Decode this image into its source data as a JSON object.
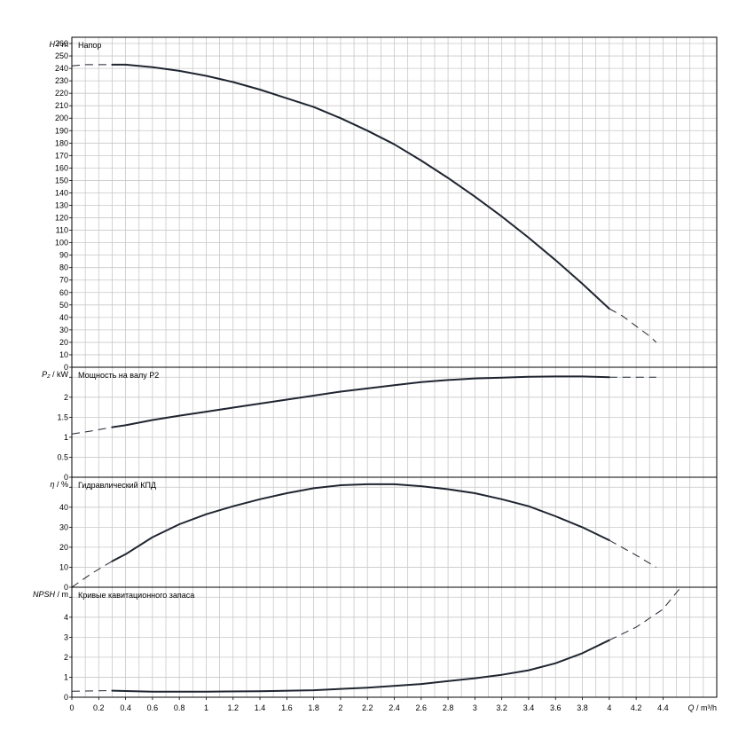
{
  "chart_data": [
    {
      "type": "line",
      "id": "head",
      "title": "Напор",
      "ylabel_symbol": "H",
      "ylabel_unit": "m",
      "ylim": [
        0,
        265
      ],
      "yticks": [
        0,
        10,
        20,
        30,
        40,
        50,
        60,
        70,
        80,
        90,
        100,
        110,
        120,
        130,
        140,
        150,
        160,
        170,
        180,
        190,
        200,
        210,
        220,
        230,
        240,
        250,
        260
      ],
      "series": [
        {
          "x": [
            0,
            0.1,
            0.2,
            0.3,
            0.4,
            0.6,
            0.8,
            1.0,
            1.2,
            1.4,
            1.6,
            1.8,
            2.0,
            2.2,
            2.4,
            2.6,
            2.8,
            3.0,
            3.2,
            3.4,
            3.6,
            3.8,
            4.0,
            4.1,
            4.2,
            4.3,
            4.35
          ],
          "y": [
            242,
            243,
            243,
            243,
            243,
            241,
            238,
            234,
            229,
            223,
            216,
            209,
            200,
            190,
            179,
            166,
            152,
            137,
            121,
            104,
            86,
            67,
            47,
            41,
            33,
            25,
            20
          ],
          "solid_from": 0.3,
          "solid_to": 4.0
        }
      ]
    },
    {
      "type": "line",
      "id": "power",
      "title": "Мощность на валу P2",
      "ylabel_symbol": "P₂",
      "ylabel_unit": "kW",
      "ylim": [
        0,
        2.75
      ],
      "yticks": [
        0,
        0.5,
        1,
        1.5,
        2,
        2.5
      ],
      "ytick_labels": [
        "0",
        "0.5",
        "1",
        "1.5",
        "2",
        ""
      ],
      "series": [
        {
          "x": [
            0,
            0.15,
            0.3,
            0.4,
            0.6,
            0.8,
            1.0,
            1.2,
            1.4,
            1.6,
            1.8,
            2.0,
            2.2,
            2.4,
            2.6,
            2.8,
            3.0,
            3.2,
            3.4,
            3.6,
            3.8,
            4.0,
            4.2,
            4.35
          ],
          "y": [
            1.08,
            1.16,
            1.25,
            1.3,
            1.43,
            1.54,
            1.64,
            1.74,
            1.84,
            1.94,
            2.04,
            2.14,
            2.22,
            2.3,
            2.38,
            2.43,
            2.47,
            2.49,
            2.51,
            2.52,
            2.52,
            2.5,
            2.5,
            2.5
          ],
          "solid_from": 0.3,
          "solid_to": 4.0
        }
      ]
    },
    {
      "type": "line",
      "id": "efficiency",
      "title": "Гидравлический КПД",
      "ylabel_symbol": "η",
      "ylabel_unit": "%",
      "ylim": [
        0,
        55
      ],
      "yticks": [
        0,
        10,
        20,
        30,
        40,
        50
      ],
      "ytick_labels": [
        "0",
        "10",
        "20",
        "30",
        "40",
        ""
      ],
      "series": [
        {
          "x": [
            0,
            0.15,
            0.3,
            0.4,
            0.6,
            0.8,
            1.0,
            1.2,
            1.4,
            1.6,
            1.8,
            2.0,
            2.2,
            2.4,
            2.6,
            2.8,
            3.0,
            3.2,
            3.4,
            3.6,
            3.8,
            4.0,
            4.2,
            4.35
          ],
          "y": [
            0,
            7,
            13,
            16.5,
            25,
            31.5,
            36.5,
            40.5,
            44,
            47,
            49.5,
            51,
            51.5,
            51.5,
            50.5,
            49,
            47,
            44,
            40.5,
            35.5,
            30,
            23.5,
            16,
            10
          ],
          "solid_from": 0.3,
          "solid_to": 4.0
        }
      ]
    },
    {
      "type": "line",
      "id": "npsh",
      "title": "Кривые кавитационного запаса",
      "ylabel_symbol": "NPSH",
      "ylabel_unit": "m",
      "ylim": [
        0,
        5.5
      ],
      "yticks": [
        0,
        1,
        2,
        3,
        4,
        5
      ],
      "ytick_labels": [
        "0",
        "1",
        "2",
        "3",
        "4",
        ""
      ],
      "series": [
        {
          "x": [
            0,
            0.3,
            0.6,
            1.0,
            1.4,
            1.8,
            2.2,
            2.6,
            3.0,
            3.2,
            3.4,
            3.6,
            3.8,
            4.0,
            4.2,
            4.4,
            4.52
          ],
          "y": [
            0.3,
            0.33,
            0.28,
            0.28,
            0.3,
            0.35,
            0.48,
            0.66,
            0.95,
            1.12,
            1.35,
            1.7,
            2.2,
            2.85,
            3.5,
            4.4,
            5.4
          ],
          "solid_from": 0.3,
          "solid_to": 4.0
        }
      ]
    }
  ],
  "x_axis": {
    "symbol": "Q",
    "unit": "m³/h",
    "xlim": [
      0,
      4.8
    ],
    "ticks": [
      0,
      0.2,
      0.4,
      0.6,
      0.8,
      1,
      1.2,
      1.4,
      1.6,
      1.8,
      2,
      2.2,
      2.4,
      2.6,
      2.8,
      3,
      3.2,
      3.4,
      3.6,
      3.8,
      4,
      4.2,
      4.4
    ],
    "minor_step": 0.1
  }
}
